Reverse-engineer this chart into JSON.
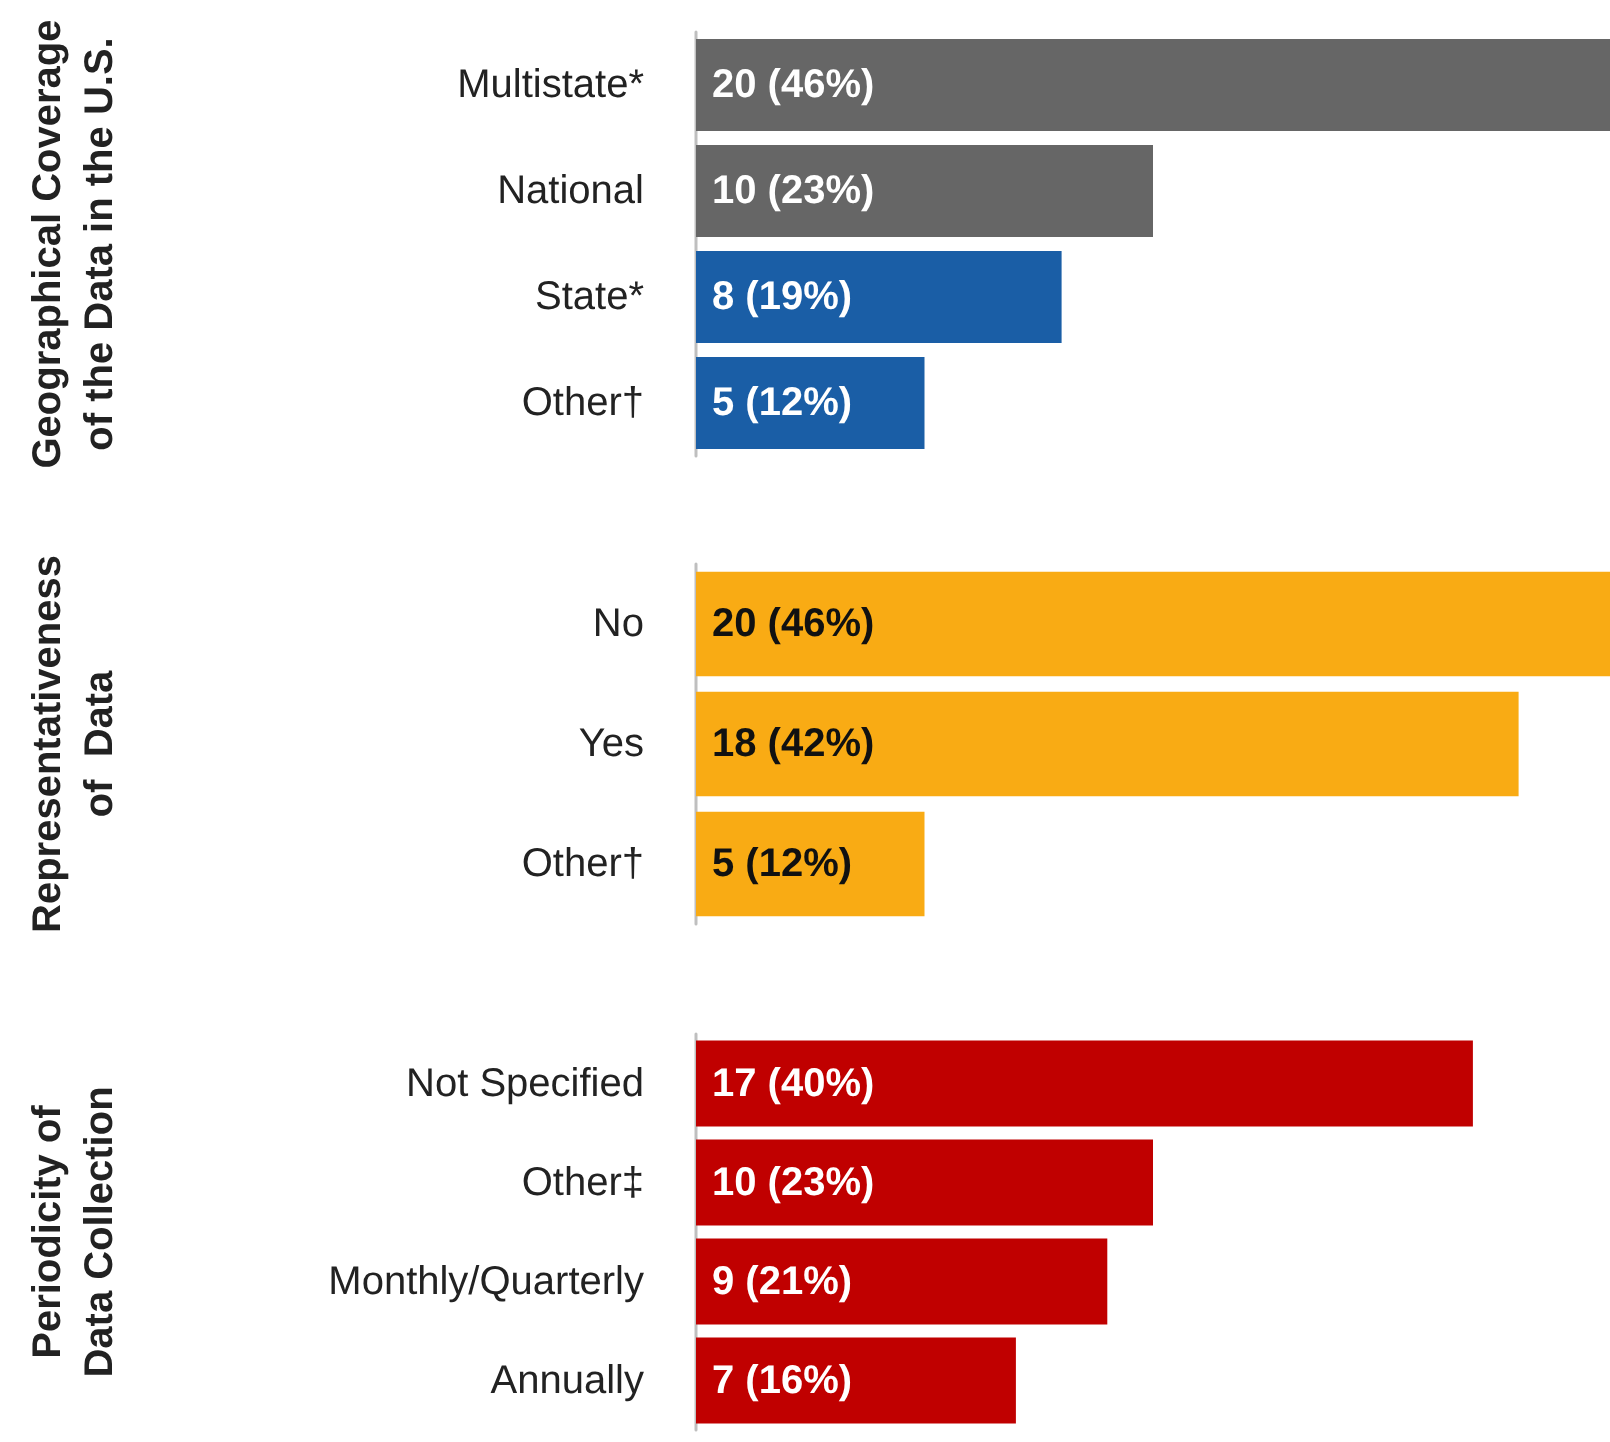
{
  "chart_data": [
    {
      "type": "bar",
      "orientation": "horizontal",
      "ylabel": "Geographical Coverage\nof the Data in the U.S.",
      "categories": [
        "Multistate*",
        "National",
        "State*",
        "Other†"
      ],
      "values": [
        20,
        10,
        8,
        5
      ],
      "colors": [
        "#666666",
        "#666666",
        "#1a5ea6",
        "#1a5ea6"
      ],
      "value_labels": [
        "20 (46%)",
        "10 (23%)",
        "8 (19%)",
        "5 (12%)"
      ]
    },
    {
      "type": "bar",
      "orientation": "horizontal",
      "ylabel": "Representativeness\nof  Data",
      "categories": [
        "No",
        "Yes",
        "Other†"
      ],
      "values": [
        20,
        18,
        5
      ],
      "colors": [
        "#f9ab14",
        "#f9ab14",
        "#f9ab14"
      ],
      "value_labels": [
        "20 (46%)",
        "18 (42%)",
        "5 (12%)"
      ]
    },
    {
      "type": "bar",
      "orientation": "horizontal",
      "ylabel": "Periodicity of\nData Collection",
      "categories": [
        "Not Specified",
        "Other‡",
        "Monthly/Quarterly",
        "Annually"
      ],
      "values": [
        17,
        10,
        9,
        7
      ],
      "colors": [
        "#c00000",
        "#c00000",
        "#c00000",
        "#c00000"
      ],
      "value_labels": [
        "17 (40%)",
        "10 (23%)",
        "9 (21%)",
        "7 (16%)"
      ]
    }
  ]
}
